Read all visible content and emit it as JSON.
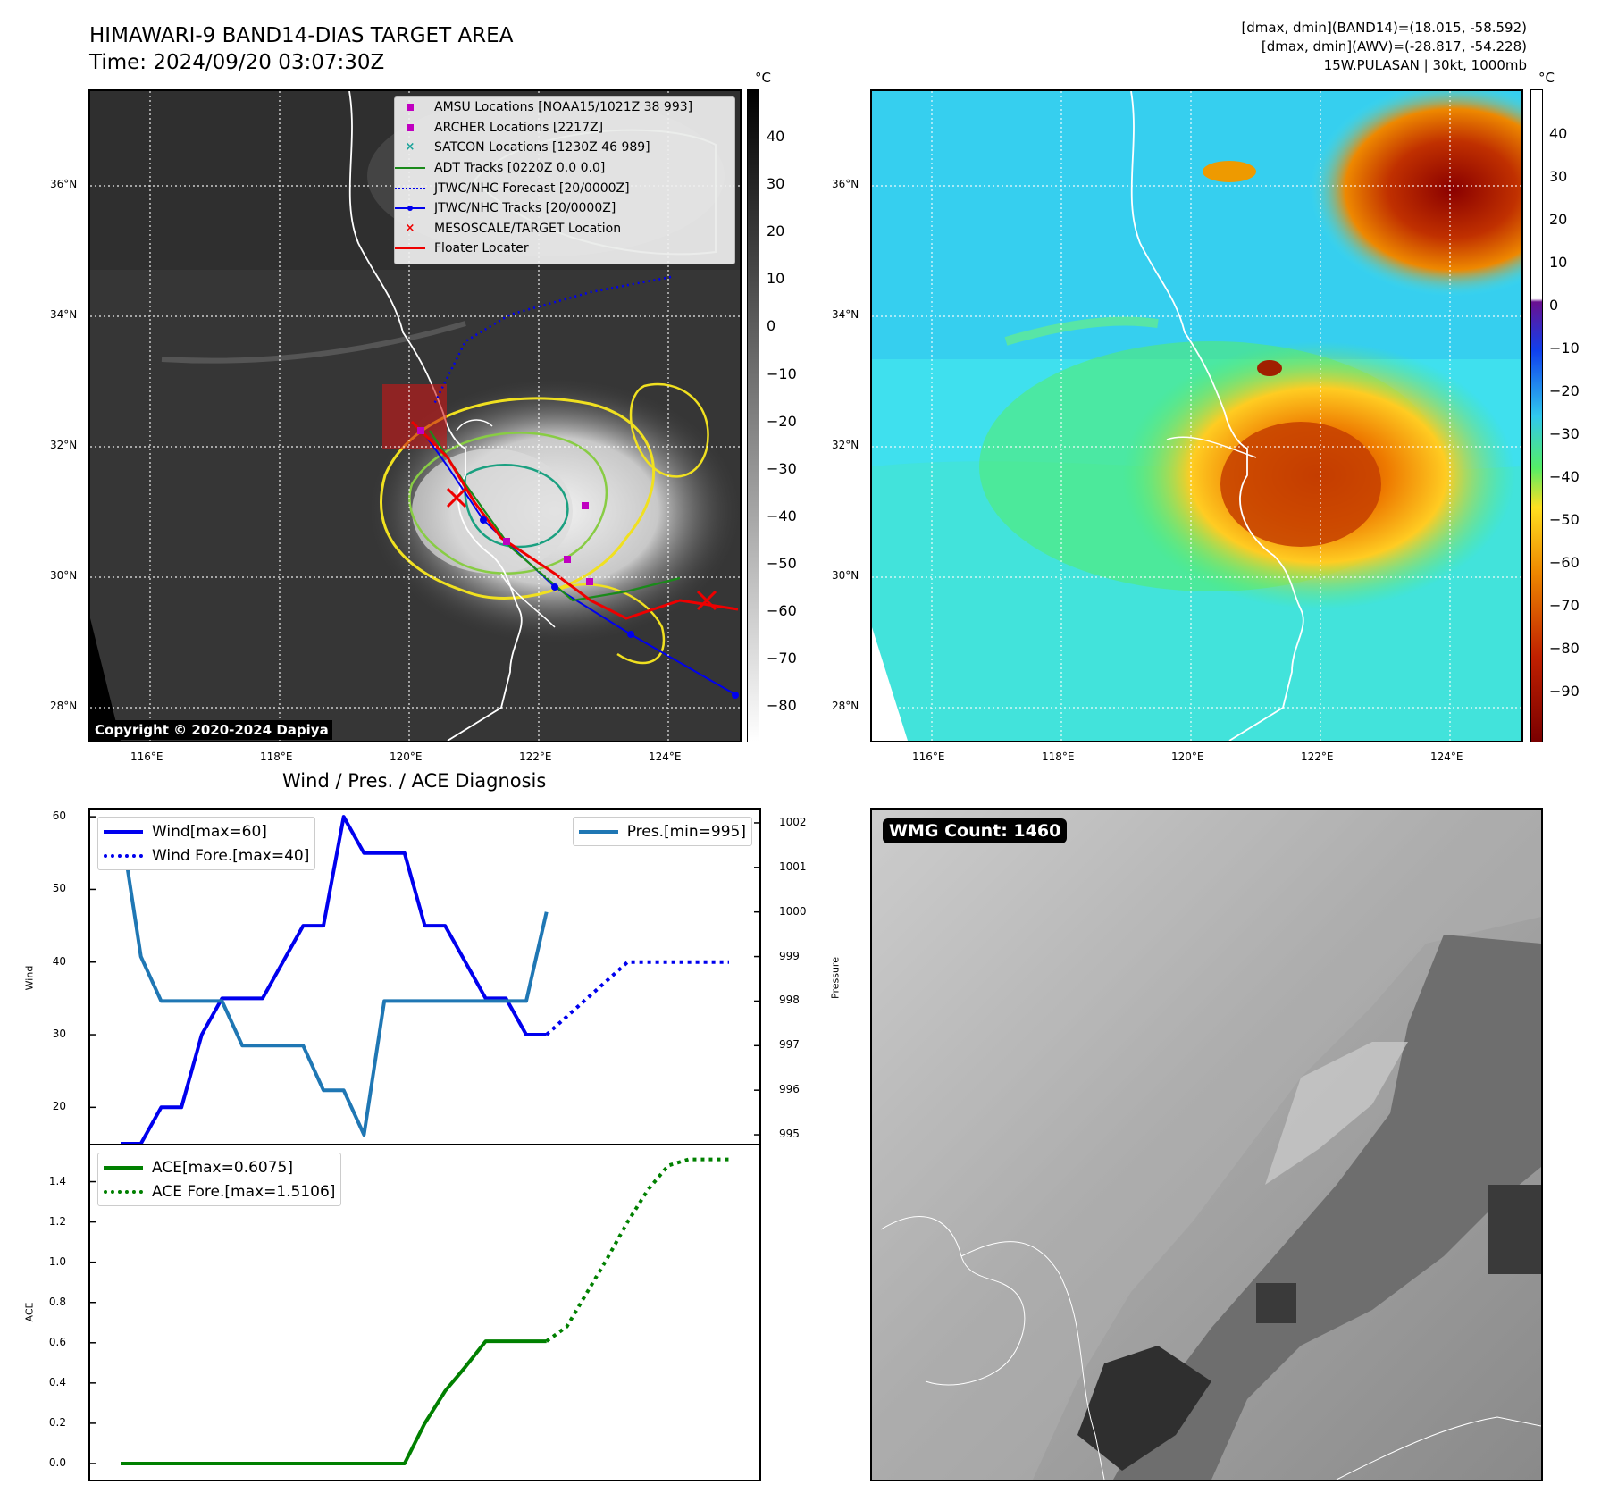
{
  "header": {
    "title_line1": "HIMAWARI-9 BAND14-DIAS TARGET AREA",
    "title_line2": "Time: 2024/09/20 03:07:30Z",
    "info_line1": "[dmax, dmin](BAND14)=(18.015, -58.592)",
    "info_line2": "[dmax, dmin](AWV)=(-28.817, -54.228)",
    "info_line3": "15W.PULASAN | 30kt, 1000mb"
  },
  "map": {
    "lat_labels": [
      "36°N",
      "34°N",
      "32°N",
      "30°N",
      "28°N"
    ],
    "lon_labels": [
      "116°E",
      "118°E",
      "120°E",
      "122°E",
      "124°E"
    ],
    "copyright": "Copyright © 2020-2024 Dapiya",
    "legend": [
      {
        "label": "AMSU Locations [NOAA15/1021Z 38 993]",
        "symbol": "square",
        "color": "#c000c0"
      },
      {
        "label": "ARCHER Locations [2217Z]",
        "symbol": "square",
        "color": "#c000c0"
      },
      {
        "label": "SATCON Locations [1230Z 46 989]",
        "symbol": "x",
        "color": "#1aa39a"
      },
      {
        "label": "ADT Tracks [0220Z 0.0 0.0]",
        "symbol": "line",
        "color": "#1a8a1a"
      },
      {
        "label": "JTWC/NHC Forecast [20/0000Z]",
        "symbol": "dotted",
        "color": "#0000ee"
      },
      {
        "label": "JTWC/NHC Tracks [20/0000Z]",
        "symbol": "line-dot",
        "color": "#0000ee"
      },
      {
        "label": "MESOSCALE/TARGET Location",
        "symbol": "x",
        "color": "#ee0000"
      },
      {
        "label": "Floater Locater",
        "symbol": "line",
        "color": "#ee0000"
      }
    ],
    "cbar1_unit": "°C",
    "cbar1_ticks": [
      "40",
      "30",
      "20",
      "10",
      "0",
      "−10",
      "−20",
      "−30",
      "−40",
      "−50",
      "−60",
      "−70",
      "−80"
    ],
    "cbar2_unit": "°C",
    "cbar2_ticks": [
      "40",
      "30",
      "20",
      "10",
      "0",
      "−10",
      "−20",
      "−30",
      "−40",
      "−50",
      "−60",
      "−70",
      "−80",
      "−90"
    ],
    "colors": {
      "ocean_cyan": "#3fe0ee",
      "land_green": "#55ee66",
      "cloud_orange": "#ee8800",
      "cloud_red": "#b02000"
    }
  },
  "diagnosis": {
    "title": "Wind / Pres. / ACE Diagnosis",
    "wind_ylabel": "Wind",
    "pressure_ylabel": "Pressure",
    "ace_ylabel": "ACE",
    "wind_ticks": [
      "60",
      "50",
      "40",
      "30",
      "20"
    ],
    "pressure_ticks": [
      "1002",
      "1001",
      "1000",
      "999",
      "998",
      "997",
      "996",
      "995"
    ],
    "ace_ticks": [
      "1.4",
      "1.2",
      "1.0",
      "0.8",
      "0.6",
      "0.4",
      "0.2",
      "0.0"
    ],
    "legend_wind": "Wind[max=60]",
    "legend_wind_fore": "Wind Fore.[max=40]",
    "legend_pres": "Pres.[min=995]",
    "legend_ace": "ACE[max=0.6075]",
    "legend_ace_fore": "ACE Fore.[max=1.5106]"
  },
  "wmg": {
    "badge": "WMG Count: 1460"
  },
  "chart_data": [
    {
      "type": "line",
      "title": "Wind / Pres. / ACE Diagnosis",
      "ylabel": "Wind",
      "ylim": [
        15,
        61
      ],
      "series": [
        {
          "name": "Wind[max=60]",
          "color": "#0000ee",
          "style": "solid",
          "x": [
            0,
            1,
            2,
            3,
            4,
            5,
            6,
            7,
            8,
            9,
            10,
            11,
            12,
            13,
            14,
            15,
            16,
            17,
            18,
            19,
            20,
            21
          ],
          "y": [
            15,
            15,
            20,
            20,
            30,
            35,
            35,
            35,
            40,
            45,
            45,
            60,
            55,
            55,
            55,
            45,
            45,
            40,
            35,
            35,
            30,
            30
          ]
        },
        {
          "name": "Wind Fore.[max=40]",
          "color": "#0000ee",
          "style": "dotted",
          "x": [
            21,
            22,
            23,
            24,
            25,
            26,
            27,
            28,
            29,
            30
          ],
          "y": [
            30,
            32.5,
            35,
            37.5,
            40,
            40,
            40,
            40,
            40,
            40
          ]
        }
      ]
    },
    {
      "type": "line",
      "ylabel": "Pressure",
      "ylim": [
        994.8,
        1002.3
      ],
      "series": [
        {
          "name": "Pres.[min=995]",
          "color": "#1f77b4",
          "style": "solid",
          "x": [
            0,
            1,
            2,
            3,
            4,
            5,
            6,
            7,
            8,
            9,
            10,
            11,
            12,
            13,
            14,
            15,
            16,
            17,
            18,
            19,
            20,
            21
          ],
          "y": [
            1002,
            999,
            998,
            998,
            998,
            998,
            997,
            997,
            997,
            997,
            996,
            996,
            995,
            998,
            998,
            998,
            998,
            998,
            998,
            998,
            998,
            1000
          ]
        }
      ]
    },
    {
      "type": "line",
      "ylabel": "ACE",
      "ylim": [
        -0.08,
        1.58
      ],
      "series": [
        {
          "name": "ACE[max=0.6075]",
          "color": "#008000",
          "style": "solid",
          "x": [
            0,
            1,
            2,
            3,
            4,
            5,
            6,
            7,
            8,
            9,
            10,
            11,
            12,
            13,
            14,
            15,
            16,
            17,
            18,
            19,
            20,
            21
          ],
          "y": [
            0,
            0,
            0,
            0,
            0,
            0,
            0,
            0,
            0,
            0,
            0,
            0,
            0,
            0,
            0,
            0.2,
            0.36,
            0.48,
            0.6075,
            0.6075,
            0.6075,
            0.6075
          ]
        },
        {
          "name": "ACE Fore.[max=1.5106]",
          "color": "#008000",
          "style": "dotted",
          "x": [
            21,
            22,
            23,
            24,
            25,
            26,
            27,
            28,
            29,
            30
          ],
          "y": [
            0.6075,
            0.68,
            0.85,
            1.02,
            1.2,
            1.36,
            1.48,
            1.5106,
            1.5106,
            1.5106
          ]
        }
      ]
    }
  ]
}
